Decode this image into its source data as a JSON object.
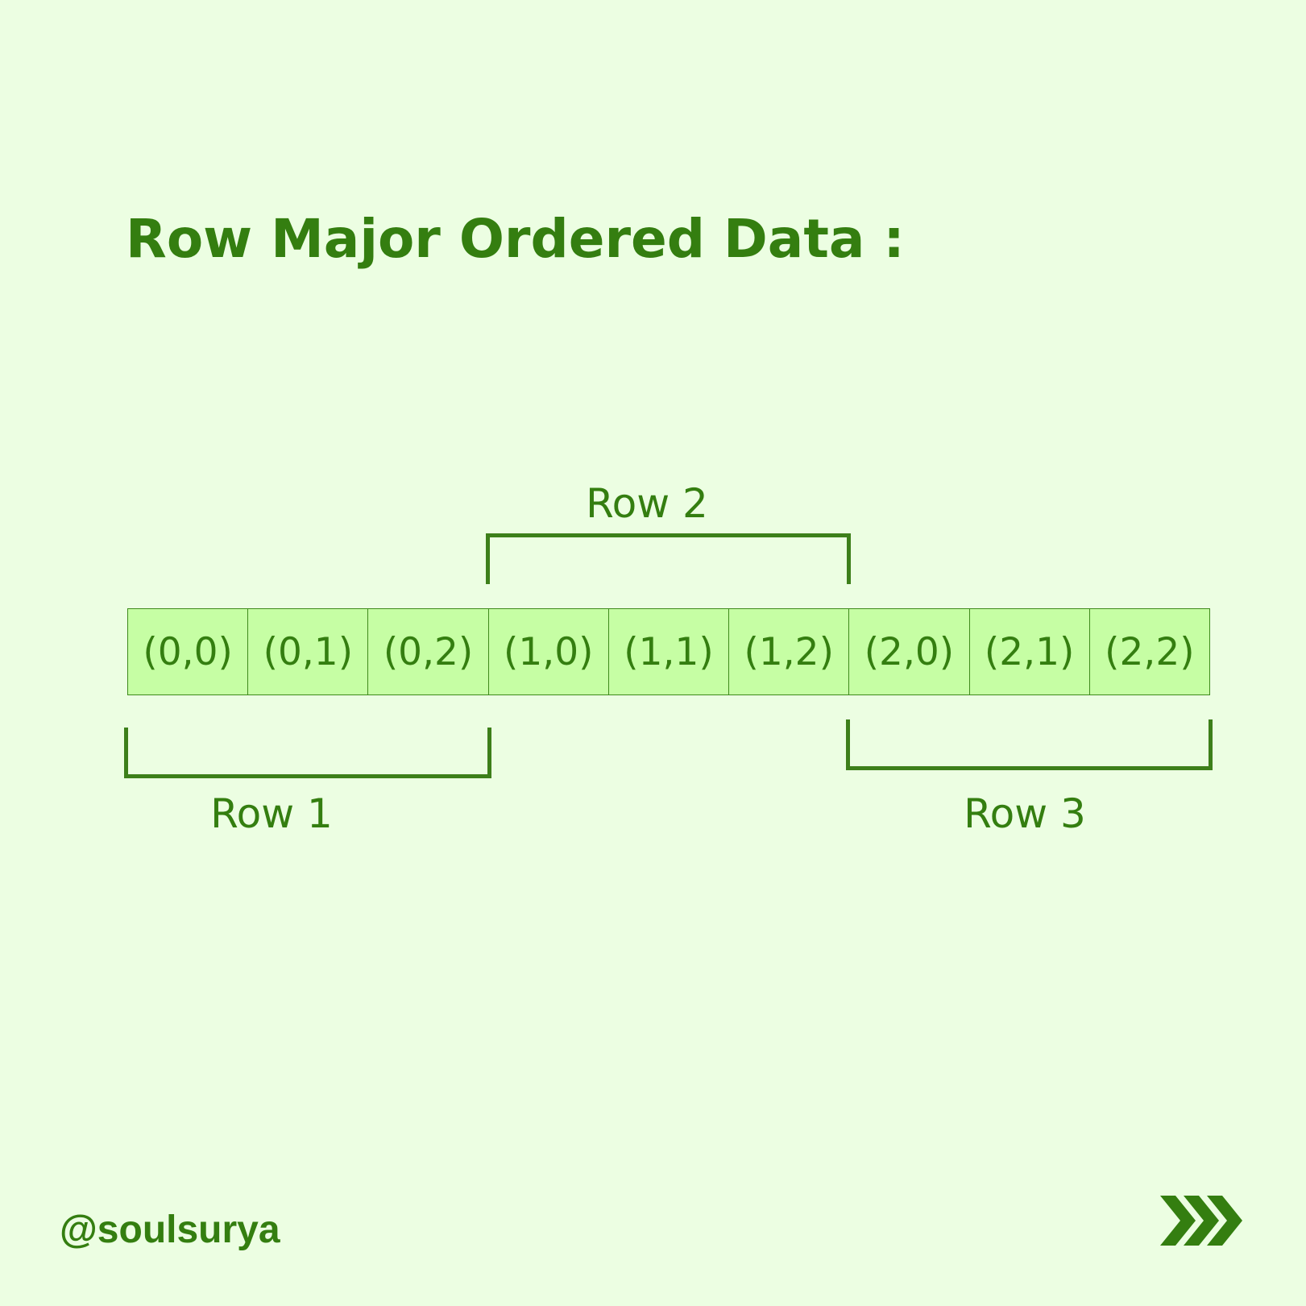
{
  "title": "Row Major Ordered Data :",
  "cells": [
    "(0,0)",
    "(0,1)",
    "(0,2)",
    "(1,0)",
    "(1,1)",
    "(1,2)",
    "(2,0)",
    "(2,1)",
    "(2,2)"
  ],
  "rows": {
    "row1": "Row 1",
    "row2": "Row 2",
    "row3": "Row 3"
  },
  "footer": {
    "handle": "@soulsurya",
    "next_icon": "triple-chevron-right-icon"
  },
  "colors": {
    "background": "#ecfee2",
    "accent": "#347e10",
    "cell_fill": "#c6fea4"
  }
}
